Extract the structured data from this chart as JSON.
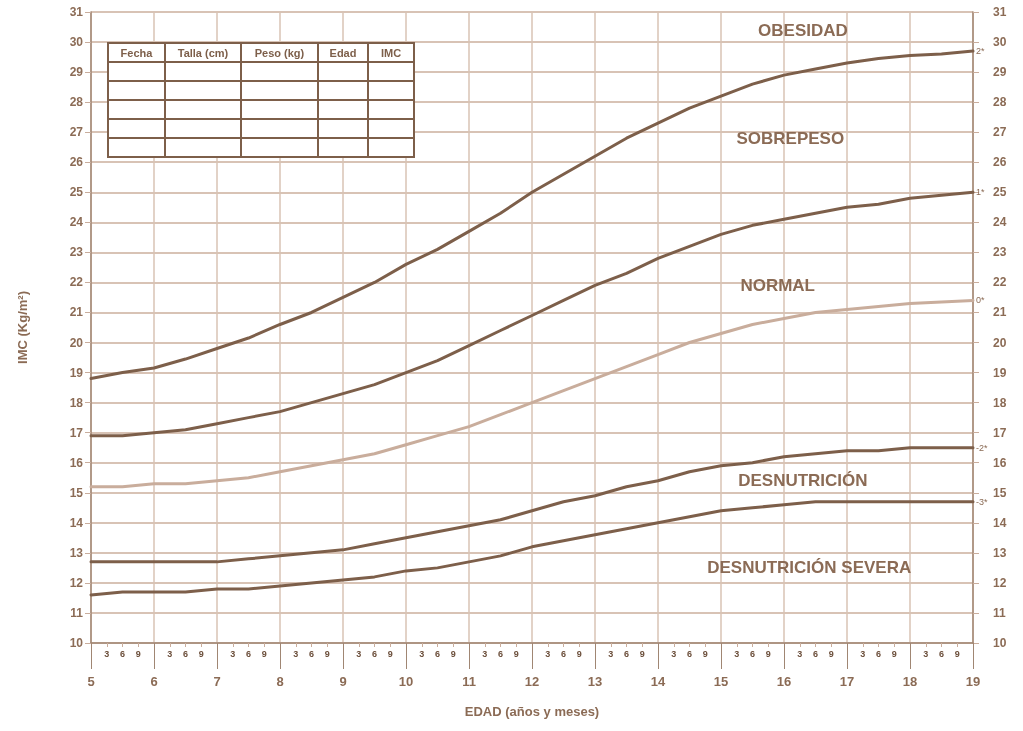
{
  "chart_data": {
    "type": "line",
    "xlabel": "EDAD (años y meses)",
    "ylabel": "IMC (Kg/m²)",
    "marker": "none",
    "grid": true,
    "legend": false,
    "xlim": [
      5,
      19
    ],
    "ylim": [
      10,
      31
    ],
    "y2lim": [
      10,
      31
    ],
    "xticks": [
      5,
      {
        "value": 5.25,
        "label": null
      },
      {
        "value": 5.5,
        "label": null
      },
      {
        "value": 5.75,
        "label": null
      },
      6,
      {
        "value": 6.25,
        "label": null
      },
      {
        "value": 6.5,
        "label": null
      },
      {
        "value": 6.75,
        "label": null
      },
      7,
      {
        "value": 7.25,
        "label": null
      },
      {
        "value": 7.5,
        "label": null
      },
      {
        "value": 7.75,
        "label": null
      },
      8,
      {
        "value": 8.25,
        "label": null
      },
      {
        "value": 8.5,
        "label": null
      },
      {
        "value": 8.75,
        "label": null
      },
      9,
      {
        "value": 9.25,
        "label": null
      },
      {
        "value": 9.5,
        "label": null
      },
      {
        "value": 9.75,
        "label": null
      },
      10,
      {
        "value": 10.25,
        "label": null
      },
      {
        "value": 10.5,
        "label": null
      },
      {
        "value": 10.75,
        "label": null
      },
      11,
      {
        "value": 11.25,
        "label": null
      },
      {
        "value": 11.5,
        "label": null
      },
      {
        "value": 11.75,
        "label": null
      },
      12,
      {
        "value": 12.25,
        "label": null
      },
      {
        "value": 12.5,
        "label": null
      },
      {
        "value": 12.75,
        "label": null
      },
      13,
      {
        "value": 13.25,
        "label": null
      },
      {
        "value": 13.5,
        "label": null
      },
      {
        "value": 13.75,
        "label": null
      },
      14,
      {
        "value": 14.25,
        "label": null
      },
      {
        "value": 14.5,
        "label": null
      },
      {
        "value": 14.75,
        "label": null
      },
      15,
      {
        "value": 15.25,
        "label": null
      },
      {
        "value": 15.5,
        "label": null
      },
      {
        "value": 15.75,
        "label": null
      },
      16,
      {
        "value": 16.25,
        "label": null
      },
      {
        "value": 16.5,
        "label": null
      },
      {
        "value": 16.75,
        "label": null
      },
      17,
      {
        "value": 17.25,
        "label": null
      },
      {
        "value": 17.5,
        "label": null
      },
      {
        "value": 17.75,
        "label": null
      },
      18,
      {
        "value": 18.25,
        "label": null
      },
      {
        "value": 18.5,
        "label": null
      },
      {
        "value": 18.75,
        "label": null
      },
      19
    ],
    "yticks": [
      10,
      11,
      12,
      13,
      14,
      15,
      16,
      17,
      18,
      19,
      20,
      21,
      22,
      23,
      24,
      25,
      26,
      27,
      28,
      29,
      30,
      31
    ],
    "y2ticks": [
      10,
      11,
      12,
      13,
      14,
      15,
      16,
      17,
      18,
      19,
      20,
      21,
      22,
      23,
      24,
      25,
      26,
      27,
      28,
      29,
      30,
      31
    ],
    "x": [
      5,
      5.5,
      6,
      6.5,
      7,
      7.5,
      8,
      8.5,
      9,
      9.5,
      10,
      10.5,
      11,
      11.5,
      12,
      12.5,
      13,
      13.5,
      14,
      14.5,
      15,
      15.5,
      16,
      16.5,
      17,
      17.5,
      18,
      18.5,
      19
    ],
    "series": [
      {
        "name": "2*",
        "color": "#7d5f4a",
        "values": [
          18.8,
          19.0,
          19.15,
          19.45,
          19.8,
          20.15,
          20.6,
          21.0,
          21.5,
          22.0,
          22.6,
          23.1,
          23.7,
          24.3,
          25.0,
          25.6,
          26.2,
          26.8,
          27.3,
          27.8,
          28.2,
          28.6,
          28.9,
          29.1,
          29.3,
          29.45,
          29.55,
          29.6,
          29.7
        ]
      },
      {
        "name": "1*",
        "color": "#7d5f4a",
        "values": [
          16.9,
          16.9,
          17.0,
          17.1,
          17.3,
          17.5,
          17.7,
          18.0,
          18.3,
          18.6,
          19.0,
          19.4,
          19.9,
          20.4,
          20.9,
          21.4,
          21.9,
          22.3,
          22.8,
          23.2,
          23.6,
          23.9,
          24.1,
          24.3,
          24.5,
          24.6,
          24.8,
          24.9,
          25.0
        ]
      },
      {
        "name": "0*",
        "color": "#c9ad9c",
        "values": [
          15.2,
          15.2,
          15.3,
          15.3,
          15.4,
          15.5,
          15.7,
          15.9,
          16.1,
          16.3,
          16.6,
          16.9,
          17.2,
          17.6,
          18.0,
          18.4,
          18.8,
          19.2,
          19.6,
          20.0,
          20.3,
          20.6,
          20.8,
          21.0,
          21.1,
          21.2,
          21.3,
          21.35,
          21.4
        ]
      },
      {
        "name": "-2*",
        "color": "#7d5f4a",
        "values": [
          12.7,
          12.7,
          12.7,
          12.7,
          12.7,
          12.8,
          12.9,
          13.0,
          13.1,
          13.3,
          13.5,
          13.7,
          13.9,
          14.1,
          14.4,
          14.7,
          14.9,
          15.2,
          15.4,
          15.7,
          15.9,
          16.0,
          16.2,
          16.3,
          16.4,
          16.4,
          16.5,
          16.5,
          16.5
        ]
      },
      {
        "name": "-3*",
        "color": "#7d5f4a",
        "values": [
          11.6,
          11.7,
          11.7,
          11.7,
          11.8,
          11.8,
          11.9,
          12.0,
          12.1,
          12.2,
          12.4,
          12.5,
          12.7,
          12.9,
          13.2,
          13.4,
          13.6,
          13.8,
          14.0,
          14.2,
          14.4,
          14.5,
          14.6,
          14.7,
          14.7,
          14.7,
          14.7,
          14.7,
          14.7
        ]
      }
    ],
    "annotations": [
      "OBESIDAD",
      "SOBREPESO",
      "NORMAL",
      "DESNUTRICIÓN",
      "DESNUTRICIÓN SEVERA",
      "Fecha",
      "Talla (cm)",
      "Peso (kg)",
      "Edad",
      "IMC",
      "3",
      "6",
      "9"
    ]
  }
}
